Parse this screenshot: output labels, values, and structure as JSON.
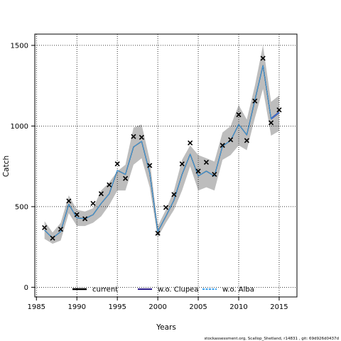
{
  "chart_data": {
    "type": "line",
    "xlabel": "Years",
    "ylabel": "Catch",
    "xlim": [
      1984.8,
      2017.2
    ],
    "ylim": [
      -60,
      1570
    ],
    "x_ticks": [
      1985,
      1990,
      1995,
      2000,
      2005,
      2010,
      2015
    ],
    "y_ticks": [
      0,
      500,
      1000,
      1500
    ],
    "grid": true,
    "legend_position": "bottom-center",
    "footer": "stockassessment.org, Scallop_Shetland, r14831 , git: 69d926d0437d",
    "band": {
      "name": "confidence interval",
      "color": "#bdbdbd",
      "x": [
        1986,
        1987,
        1988,
        1989,
        1990,
        1991,
        1992,
        1993,
        1994,
        1995,
        1996,
        1997,
        1998,
        1999,
        2000,
        2001,
        2002,
        2003,
        2004,
        2005,
        2006,
        2007,
        2008,
        2009,
        2010,
        2011,
        2012,
        2013,
        2014,
        2015
      ],
      "lower": [
        300,
        270,
        290,
        460,
        380,
        380,
        400,
        440,
        510,
        600,
        600,
        760,
        800,
        620,
        310,
        400,
        480,
        600,
        750,
        600,
        620,
        600,
        790,
        820,
        880,
        850,
        1050,
        1230,
        940,
        970
      ],
      "upper": [
        410,
        340,
        400,
        570,
        480,
        470,
        490,
        600,
        650,
        720,
        760,
        990,
        1010,
        790,
        380,
        480,
        600,
        790,
        880,
        820,
        800,
        780,
        960,
        1000,
        1130,
        1040,
        1250,
        1500,
        1150,
        1190
      ]
    },
    "observed": {
      "name": "observed catch",
      "marker": "x",
      "x": [
        1986,
        1987,
        1988,
        1989,
        1990,
        1991,
        1992,
        1993,
        1994,
        1995,
        1996,
        1997,
        1998,
        1999,
        2000,
        2001,
        2002,
        2003,
        2004,
        2005,
        2006,
        2007,
        2008,
        2009,
        2010,
        2011,
        2012,
        2013,
        2014,
        2015
      ],
      "y": [
        370,
        305,
        360,
        535,
        450,
        425,
        520,
        580,
        635,
        765,
        675,
        935,
        930,
        755,
        335,
        495,
        575,
        765,
        895,
        720,
        775,
        700,
        880,
        915,
        1070,
        910,
        1155,
        1420,
        1020,
        1100
      ]
    },
    "series": [
      {
        "name": "current",
        "color": "#000000",
        "x": [
          1986,
          1987,
          1988,
          1989,
          1990,
          1991,
          1992,
          1993,
          1994,
          1995,
          1996,
          1997,
          1998,
          1999,
          2000,
          2001,
          2002,
          2003,
          2004,
          2005,
          2006,
          2007,
          2008,
          2009,
          2010,
          2011,
          2012,
          2013,
          2014,
          2015
        ],
        "values": [
          355,
          305,
          345,
          515,
          430,
          425,
          450,
          520,
          580,
          725,
          700,
          870,
          905,
          710,
          345,
          440,
          540,
          700,
          825,
          690,
          720,
          690,
          875,
          910,
          1010,
          945,
          1160,
          1375,
          1045,
          1085
        ]
      },
      {
        "name": "w.o. Clupea",
        "color": "#2e1e8c",
        "x": [
          2014,
          2015
        ],
        "values": [
          1045,
          1085
        ]
      },
      {
        "name": "w.o. Alba",
        "color": "#3fa2ee",
        "x": [
          1986,
          1987,
          1988,
          1989,
          1990,
          1991,
          1992,
          1993,
          1994,
          1995,
          1996,
          1997,
          1998,
          1999,
          2000,
          2001,
          2002,
          2003,
          2004,
          2005,
          2006,
          2007,
          2008,
          2009,
          2010,
          2011,
          2012,
          2013,
          2014,
          2015
        ],
        "values": [
          355,
          305,
          345,
          515,
          430,
          425,
          450,
          520,
          580,
          725,
          700,
          870,
          905,
          710,
          345,
          440,
          540,
          700,
          825,
          690,
          720,
          690,
          875,
          910,
          1010,
          945,
          1160,
          1375,
          1045,
          1085
        ]
      }
    ]
  }
}
